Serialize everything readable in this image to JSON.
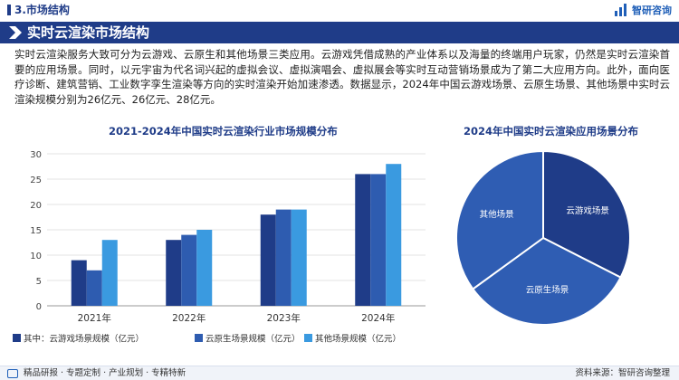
{
  "header": {
    "section_label": "3.市场结构",
    "logo_text": "智研咨询"
  },
  "title": "实时云渲染市场结构",
  "intro": "实时云渲染服务大致可分为云游戏、云原生和其他场景三类应用。云游戏凭借成熟的产业体系以及海量的终端用户玩家，仍然是实时云渲染首要的应用场景。同时，以元宇宙为代名词兴起的虚拟会议、虚拟演唱会、虚拟展会等实时互动营销场景成为了第二大应用方向。此外，面向医疗诊断、建筑营销、工业数字孪生渲染等方向的实时渲染开始加速渗透。数据显示，2024年中国云游戏场景、云原生场景、其他场景中实时云渲染规模分别为26亿元、26亿元、28亿元。",
  "footer": {
    "left": "精品研报 · 专题定制 · 产业规划 · 专精特新",
    "right": "资料来源：智研咨询整理"
  },
  "colors": {
    "series1": "#1f3c88",
    "series2": "#2e5cb0",
    "series3": "#3a9ae0"
  },
  "chart_data": [
    {
      "type": "bar",
      "title": "2021-2024年中国实时云渲染行业市场规模分布",
      "categories": [
        "2021年",
        "2022年",
        "2023年",
        "2024年"
      ],
      "series": [
        {
          "name": "其中：云游戏场景规模（亿元）",
          "values": [
            9,
            13,
            18,
            26
          ]
        },
        {
          "name": "云原生场景规模（亿元）",
          "values": [
            7,
            14,
            19,
            26
          ]
        },
        {
          "name": "其他场景规模（亿元）",
          "values": [
            13,
            15,
            19,
            28
          ]
        }
      ],
      "yticks": [
        "0",
        "5",
        "10",
        "15",
        "20",
        "25",
        "30"
      ],
      "ylim": [
        0,
        30
      ],
      "grid": true,
      "legend": "bottom"
    },
    {
      "type": "pie",
      "title": "2024年中国实时云渲染应用场景分布",
      "labels": [
        "云游戏场景",
        "云原生场景",
        "其他场景"
      ],
      "values": [
        26,
        26,
        28
      ]
    }
  ]
}
